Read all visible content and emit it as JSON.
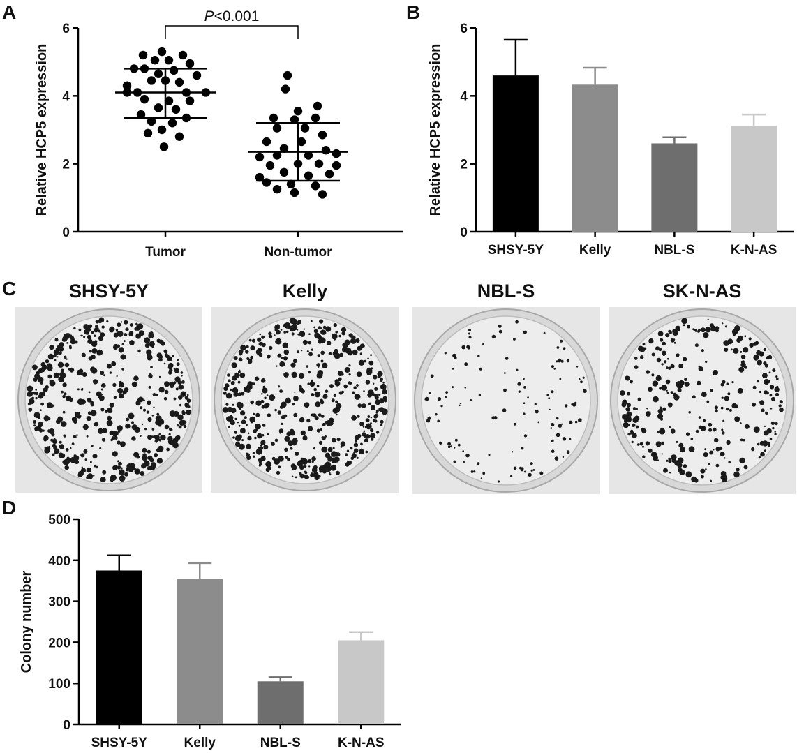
{
  "panels": {
    "a": {
      "letter": "A"
    },
    "b": {
      "letter": "B"
    },
    "c": {
      "letter": "C"
    },
    "d": {
      "letter": "D"
    }
  },
  "colors": {
    "black": "#000000",
    "gray1": "#8c8c8c",
    "gray2": "#6e6e6e",
    "gray3": "#c8c8c8"
  },
  "chart_data": [
    {
      "id": "A",
      "type": "scatter",
      "title": "",
      "xlabel": "",
      "ylabel": "Relative HCP5 expression",
      "ylim": [
        0,
        6
      ],
      "yticks": [
        0,
        2,
        4,
        6
      ],
      "categories": [
        "Tumor",
        "Non-tumor"
      ],
      "annotation": {
        "italic": "P",
        "text": "<0.001"
      },
      "series": [
        {
          "category": "Tumor",
          "mean": 4.1,
          "sd_low": 3.35,
          "sd_high": 4.8,
          "points": [
            [
              -0.05,
              5.3
            ],
            [
              -0.32,
              5.2
            ],
            [
              0.25,
              5.2
            ],
            [
              -0.15,
              5.05
            ],
            [
              0.05,
              5.05
            ],
            [
              0.35,
              4.95
            ],
            [
              -0.45,
              4.8
            ],
            [
              -0.3,
              4.8
            ],
            [
              0.12,
              4.75
            ],
            [
              -0.1,
              4.65
            ],
            [
              0.45,
              4.6
            ],
            [
              -0.55,
              4.3
            ],
            [
              -0.4,
              4.1
            ],
            [
              -0.2,
              4.45
            ],
            [
              0.0,
              4.45
            ],
            [
              0.2,
              4.4
            ],
            [
              0.58,
              4.1
            ],
            [
              0.3,
              4.1
            ],
            [
              -0.55,
              4.1
            ],
            [
              -0.3,
              3.9
            ],
            [
              0.05,
              3.85
            ],
            [
              0.35,
              3.85
            ],
            [
              -0.1,
              3.65
            ],
            [
              0.15,
              3.6
            ],
            [
              -0.35,
              3.45
            ],
            [
              0.3,
              3.35
            ],
            [
              -0.2,
              3.25
            ],
            [
              0.1,
              3.2
            ],
            [
              -0.05,
              3.0
            ],
            [
              0.2,
              2.8
            ],
            [
              -0.25,
              2.9
            ],
            [
              -0.02,
              2.5
            ]
          ]
        },
        {
          "category": "Non-tumor",
          "mean": 2.35,
          "sd_low": 1.5,
          "sd_high": 3.2,
          "points": [
            [
              -0.15,
              4.6
            ],
            [
              -0.18,
              4.2
            ],
            [
              0.28,
              3.7
            ],
            [
              0.0,
              3.55
            ],
            [
              -0.35,
              3.35
            ],
            [
              0.25,
              3.35
            ],
            [
              -0.05,
              3.3
            ],
            [
              -0.3,
              3.05
            ],
            [
              0.1,
              3.05
            ],
            [
              0.35,
              2.85
            ],
            [
              -0.45,
              2.65
            ],
            [
              0.05,
              2.65
            ],
            [
              -0.2,
              2.45
            ],
            [
              0.4,
              2.4
            ],
            [
              0.55,
              2.3
            ],
            [
              -0.55,
              2.2
            ],
            [
              -0.3,
              2.25
            ],
            [
              0.15,
              2.25
            ],
            [
              0.55,
              1.95
            ],
            [
              -0.4,
              1.95
            ],
            [
              0.0,
              2.0
            ],
            [
              0.3,
              2.0
            ],
            [
              -0.55,
              1.6
            ],
            [
              -0.2,
              1.75
            ],
            [
              0.15,
              1.65
            ],
            [
              0.45,
              1.7
            ],
            [
              -0.45,
              1.45
            ],
            [
              -0.1,
              1.4
            ],
            [
              0.25,
              1.35
            ],
            [
              -0.3,
              1.25
            ],
            [
              -0.05,
              1.15
            ],
            [
              0.35,
              1.1
            ]
          ]
        }
      ]
    },
    {
      "id": "B",
      "type": "bar",
      "title": "",
      "xlabel": "",
      "ylabel": "Relative HCP5 expression",
      "ylim": [
        0,
        6
      ],
      "yticks": [
        0,
        2,
        4,
        6
      ],
      "categories": [
        "SHSY-5Y",
        "Kelly",
        "NBL-S",
        "K-N-AS"
      ],
      "values": [
        4.6,
        4.33,
        2.6,
        3.12
      ],
      "errors": [
        1.05,
        0.5,
        0.18,
        0.33
      ]
    },
    {
      "id": "D",
      "type": "bar",
      "title": "",
      "xlabel": "",
      "ylabel": "Colony number",
      "ylim": [
        0,
        500
      ],
      "yticks": [
        0,
        100,
        200,
        300,
        400,
        500
      ],
      "categories": [
        "SHSY-5Y",
        "Kelly",
        "NBL-S",
        "K-N-AS"
      ],
      "values": [
        375,
        355,
        105,
        205
      ],
      "errors": [
        37,
        38,
        10,
        20
      ]
    }
  ],
  "plates": {
    "titles": [
      "SHSY-5Y",
      "Kelly",
      "NBL-S",
      "SK-N-AS"
    ],
    "colony_density": [
      0.95,
      1.0,
      0.25,
      0.6
    ]
  }
}
